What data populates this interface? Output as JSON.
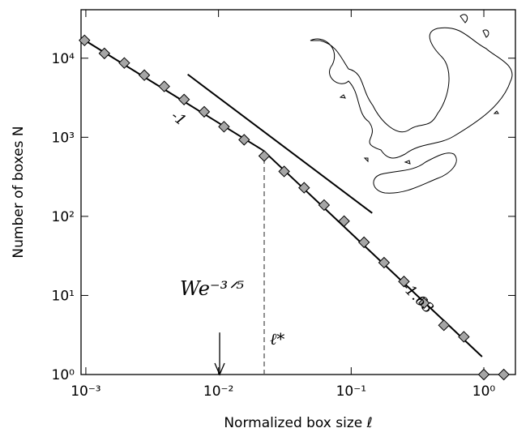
{
  "chart_data": {
    "type": "scatter",
    "xlabel": "Normalized box size ℓ",
    "ylabel": "Number of boxes N",
    "xscale": "log",
    "yscale": "log",
    "xlim": [
      0.00092,
      1.73
    ],
    "ylim": [
      1,
      41000
    ],
    "xticks": [
      {
        "value": 0.001,
        "label": "10⁻³"
      },
      {
        "value": 0.01,
        "label": "10⁻²"
      },
      {
        "value": 0.1,
        "label": "10⁻¹"
      },
      {
        "value": 1,
        "label": "10⁰"
      }
    ],
    "yticks": [
      {
        "value": 1,
        "label": "10⁰"
      },
      {
        "value": 10,
        "label": "10¹"
      },
      {
        "value": 100,
        "label": "10²"
      },
      {
        "value": 1000,
        "label": "10³"
      },
      {
        "value": 10000,
        "label": "10⁴"
      }
    ],
    "series": [
      {
        "kind": "marker",
        "color": "#a6a6a6",
        "x": [
          0.000977,
          0.00138,
          0.00195,
          0.00276,
          0.0039,
          0.0055,
          0.0078,
          0.011,
          0.0156,
          0.0221,
          0.03125,
          0.0442,
          0.0625,
          0.0884,
          0.125,
          0.177,
          0.25,
          0.354,
          0.5,
          0.707,
          1,
          1.414
        ],
        "values": [
          16800,
          11500,
          8700,
          6100,
          4400,
          3000,
          2100,
          1360,
          930,
          580,
          370,
          230,
          139,
          87,
          47,
          26,
          15,
          8,
          4.2,
          3,
          1,
          1
        ]
      },
      {
        "kind": "line",
        "color": "#000000",
        "x": [
          0.00092,
          0.0216
        ],
        "values": [
          18000,
          686
        ]
      },
      {
        "kind": "line",
        "color": "#000000",
        "x": [
          0.0216,
          0.97
        ],
        "values": [
          686,
          1.68
        ]
      },
      {
        "kind": "line",
        "color": "#000000",
        "x": [
          0.00586,
          0.144
        ],
        "values": [
          6240,
          110
        ]
      },
      {
        "kind": "dashed",
        "color": "#555555",
        "x": [
          0.0221,
          0.0221
        ],
        "values": [
          1,
          580
        ]
      },
      {
        "kind": "arrow",
        "color": "#000000",
        "x": [
          0.0102,
          0.0102
        ],
        "values": [
          3.4,
          1
        ]
      }
    ],
    "annotations": [
      "-1",
      "-1.63",
      "We⁻³ᐟ⁵",
      "ℓ*"
    ]
  }
}
